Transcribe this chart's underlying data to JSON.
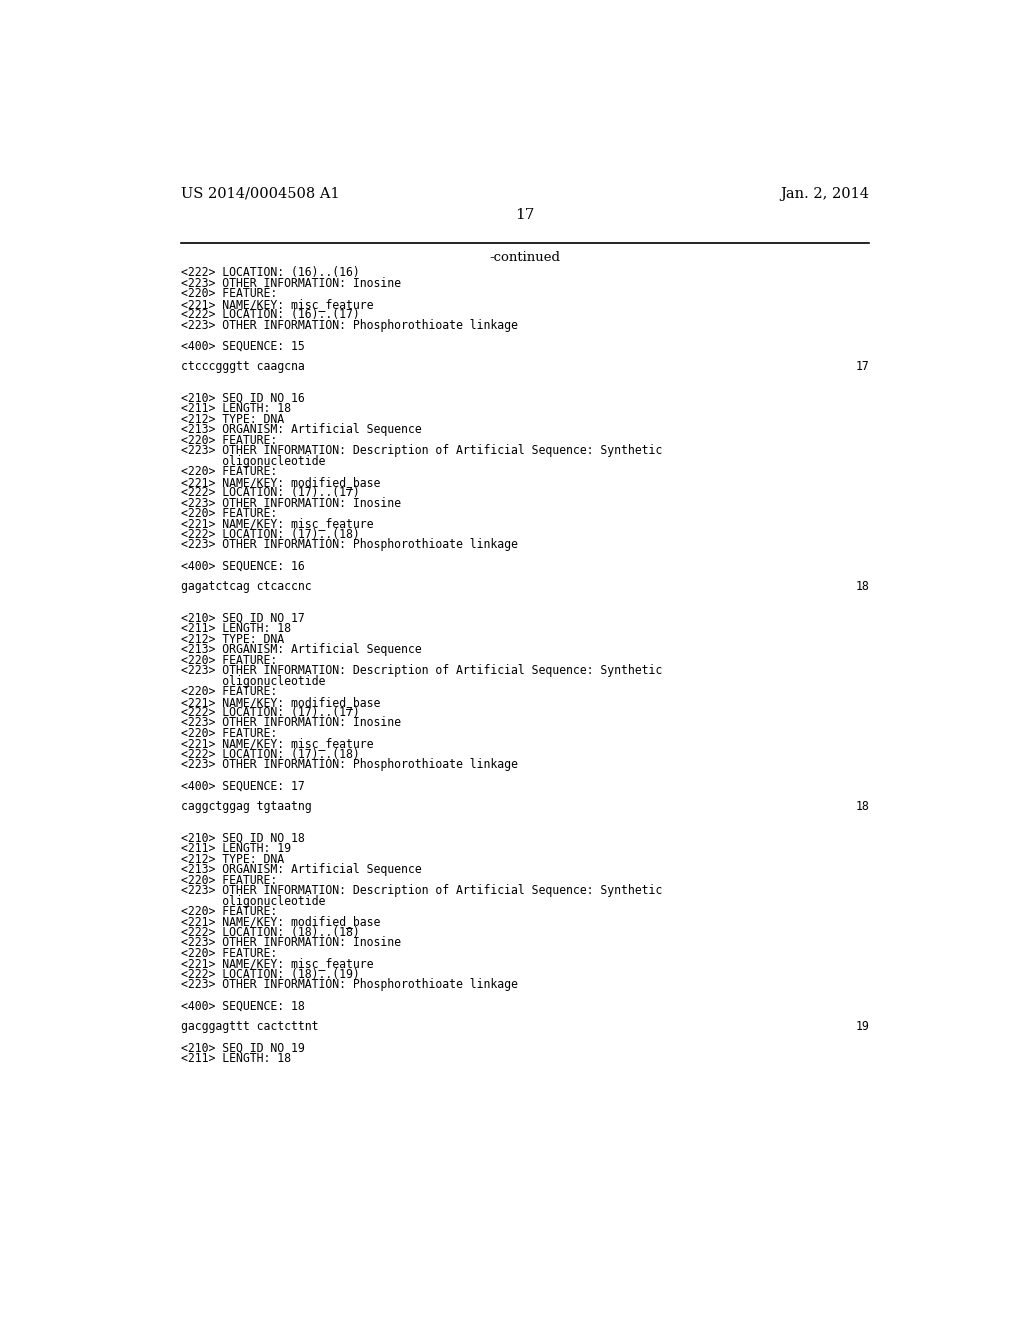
{
  "header_left": "US 2014/0004508 A1",
  "header_right": "Jan. 2, 2014",
  "page_number": "17",
  "continued_text": "-continued",
  "background_color": "#ffffff",
  "text_color": "#000000",
  "lines": [
    {
      "text": "<222> LOCATION: (16)..(16)",
      "seq_num": null
    },
    {
      "text": "<223> OTHER INFORMATION: Inosine",
      "seq_num": null
    },
    {
      "text": "<220> FEATURE:",
      "seq_num": null
    },
    {
      "text": "<221> NAME/KEY: misc_feature",
      "seq_num": null
    },
    {
      "text": "<222> LOCATION: (16)..(17)",
      "seq_num": null
    },
    {
      "text": "<223> OTHER INFORMATION: Phosphorothioate linkage",
      "seq_num": null
    },
    {
      "text": "",
      "seq_num": null
    },
    {
      "text": "<400> SEQUENCE: 15",
      "seq_num": null
    },
    {
      "text": "",
      "seq_num": null
    },
    {
      "text": "ctcccgggtt caagcna",
      "seq_num": "17"
    },
    {
      "text": "",
      "seq_num": null
    },
    {
      "text": "",
      "seq_num": null
    },
    {
      "text": "<210> SEQ ID NO 16",
      "seq_num": null
    },
    {
      "text": "<211> LENGTH: 18",
      "seq_num": null
    },
    {
      "text": "<212> TYPE: DNA",
      "seq_num": null
    },
    {
      "text": "<213> ORGANISM: Artificial Sequence",
      "seq_num": null
    },
    {
      "text": "<220> FEATURE:",
      "seq_num": null
    },
    {
      "text": "<223> OTHER INFORMATION: Description of Artificial Sequence: Synthetic",
      "seq_num": null
    },
    {
      "text": "      oligonucleotide",
      "seq_num": null
    },
    {
      "text": "<220> FEATURE:",
      "seq_num": null
    },
    {
      "text": "<221> NAME/KEY: modified_base",
      "seq_num": null
    },
    {
      "text": "<222> LOCATION: (17)..(17)",
      "seq_num": null
    },
    {
      "text": "<223> OTHER INFORMATION: Inosine",
      "seq_num": null
    },
    {
      "text": "<220> FEATURE:",
      "seq_num": null
    },
    {
      "text": "<221> NAME/KEY: misc_feature",
      "seq_num": null
    },
    {
      "text": "<222> LOCATION: (17)..(18)",
      "seq_num": null
    },
    {
      "text": "<223> OTHER INFORMATION: Phosphorothioate linkage",
      "seq_num": null
    },
    {
      "text": "",
      "seq_num": null
    },
    {
      "text": "<400> SEQUENCE: 16",
      "seq_num": null
    },
    {
      "text": "",
      "seq_num": null
    },
    {
      "text": "gagatctcag ctcaccnc",
      "seq_num": "18"
    },
    {
      "text": "",
      "seq_num": null
    },
    {
      "text": "",
      "seq_num": null
    },
    {
      "text": "<210> SEQ ID NO 17",
      "seq_num": null
    },
    {
      "text": "<211> LENGTH: 18",
      "seq_num": null
    },
    {
      "text": "<212> TYPE: DNA",
      "seq_num": null
    },
    {
      "text": "<213> ORGANISM: Artificial Sequence",
      "seq_num": null
    },
    {
      "text": "<220> FEATURE:",
      "seq_num": null
    },
    {
      "text": "<223> OTHER INFORMATION: Description of Artificial Sequence: Synthetic",
      "seq_num": null
    },
    {
      "text": "      oligonucleotide",
      "seq_num": null
    },
    {
      "text": "<220> FEATURE:",
      "seq_num": null
    },
    {
      "text": "<221> NAME/KEY: modified_base",
      "seq_num": null
    },
    {
      "text": "<222> LOCATION: (17)..(17)",
      "seq_num": null
    },
    {
      "text": "<223> OTHER INFORMATION: Inosine",
      "seq_num": null
    },
    {
      "text": "<220> FEATURE:",
      "seq_num": null
    },
    {
      "text": "<221> NAME/KEY: misc_feature",
      "seq_num": null
    },
    {
      "text": "<222> LOCATION: (17)..(18)",
      "seq_num": null
    },
    {
      "text": "<223> OTHER INFORMATION: Phosphorothioate linkage",
      "seq_num": null
    },
    {
      "text": "",
      "seq_num": null
    },
    {
      "text": "<400> SEQUENCE: 17",
      "seq_num": null
    },
    {
      "text": "",
      "seq_num": null
    },
    {
      "text": "caggctggag tgtaatng",
      "seq_num": "18"
    },
    {
      "text": "",
      "seq_num": null
    },
    {
      "text": "",
      "seq_num": null
    },
    {
      "text": "<210> SEQ ID NO 18",
      "seq_num": null
    },
    {
      "text": "<211> LENGTH: 19",
      "seq_num": null
    },
    {
      "text": "<212> TYPE: DNA",
      "seq_num": null
    },
    {
      "text": "<213> ORGANISM: Artificial Sequence",
      "seq_num": null
    },
    {
      "text": "<220> FEATURE:",
      "seq_num": null
    },
    {
      "text": "<223> OTHER INFORMATION: Description of Artificial Sequence: Synthetic",
      "seq_num": null
    },
    {
      "text": "      oligonucleotide",
      "seq_num": null
    },
    {
      "text": "<220> FEATURE:",
      "seq_num": null
    },
    {
      "text": "<221> NAME/KEY: modified_base",
      "seq_num": null
    },
    {
      "text": "<222> LOCATION: (18)..(18)",
      "seq_num": null
    },
    {
      "text": "<223> OTHER INFORMATION: Inosine",
      "seq_num": null
    },
    {
      "text": "<220> FEATURE:",
      "seq_num": null
    },
    {
      "text": "<221> NAME/KEY: misc_feature",
      "seq_num": null
    },
    {
      "text": "<222> LOCATION: (18)..(19)",
      "seq_num": null
    },
    {
      "text": "<223> OTHER INFORMATION: Phosphorothioate linkage",
      "seq_num": null
    },
    {
      "text": "",
      "seq_num": null
    },
    {
      "text": "<400> SEQUENCE: 18",
      "seq_num": null
    },
    {
      "text": "",
      "seq_num": null
    },
    {
      "text": "gacggagttt cactcttnt",
      "seq_num": "19"
    },
    {
      "text": "",
      "seq_num": null
    },
    {
      "text": "<210> SEQ ID NO 19",
      "seq_num": null
    },
    {
      "text": "<211> LENGTH: 18",
      "seq_num": null
    }
  ]
}
